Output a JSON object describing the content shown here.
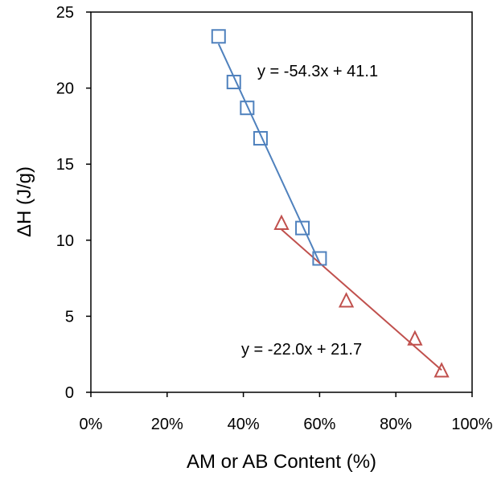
{
  "chart_data": {
    "type": "scatter",
    "title": "",
    "xlabel": "AM or AB Content (%)",
    "ylabel": "ΔH (J/g)",
    "xlim": [
      0,
      1
    ],
    "ylim": [
      0,
      25
    ],
    "x_ticks": [
      0,
      0.2,
      0.4,
      0.6,
      0.8,
      1.0
    ],
    "x_tick_labels": [
      "0%",
      "20%",
      "40%",
      "60%",
      "80%",
      "100%"
    ],
    "y_ticks": [
      0,
      5,
      10,
      15,
      20,
      25
    ],
    "y_tick_labels": [
      "0",
      "5",
      "10",
      "15",
      "20",
      "25"
    ],
    "grid": false,
    "legend": "none",
    "series": [
      {
        "marker": "square",
        "color": "#4F81BD",
        "points": [
          {
            "x": 0.335,
            "y": 23.4
          },
          {
            "x": 0.375,
            "y": 20.4
          },
          {
            "x": 0.41,
            "y": 18.7
          },
          {
            "x": 0.445,
            "y": 16.7
          },
          {
            "x": 0.555,
            "y": 10.8
          },
          {
            "x": 0.6,
            "y": 8.8
          }
        ],
        "trendline": {
          "slope": -54.3,
          "intercept": 41.1,
          "x_range": [
            0.335,
            0.6
          ],
          "label": "y = -54.3x + 41.1"
        }
      },
      {
        "marker": "triangle",
        "color": "#C0504D",
        "points": [
          {
            "x": 0.5,
            "y": 11.1
          },
          {
            "x": 0.67,
            "y": 6.0
          },
          {
            "x": 0.85,
            "y": 3.5
          },
          {
            "x": 0.92,
            "y": 1.4
          }
        ],
        "trendline": {
          "slope": -22.0,
          "intercept": 21.7,
          "x_range": [
            0.5,
            0.92
          ],
          "label": "y = -22.0x + 21.7"
        }
      }
    ]
  }
}
